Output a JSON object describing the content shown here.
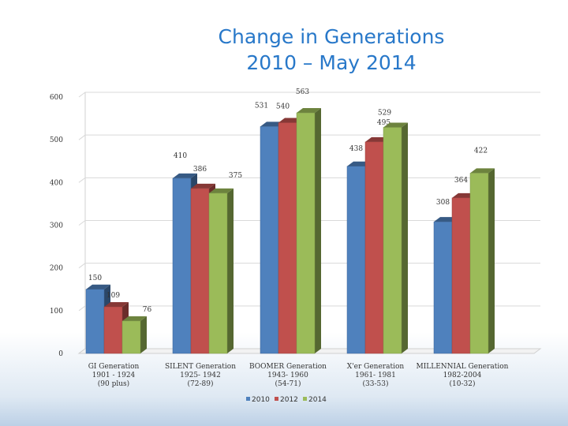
{
  "title_line1": "Change in Generations",
  "title_line2": "2010 – May 2014",
  "colors": {
    "2010": "#4f81bd",
    "2012": "#c0504d",
    "2014": "#9bbb59"
  },
  "chart_data": {
    "type": "bar",
    "title": "Change in Generations 2010 – May 2014",
    "ylim": [
      0,
      600
    ],
    "yticks": [
      0,
      100,
      200,
      300,
      400,
      500,
      600
    ],
    "grid": true,
    "legend_position": "bottom",
    "categories": [
      [
        "GI Generation",
        "1901 - 1924",
        "(90 plus)"
      ],
      [
        "SILENT Generation",
        "1925- 1942",
        "(72-89)"
      ],
      [
        "BOOMER Generation",
        "1943- 1960",
        "(54-71)"
      ],
      [
        "X'er Generation",
        "1961- 1981",
        "(33-53)"
      ],
      [
        "MILLENNIAL Generation",
        "1982-2004",
        "(10-32)"
      ]
    ],
    "series": [
      {
        "name": "2010",
        "values": [
          150,
          410,
          531,
          438,
          308
        ]
      },
      {
        "name": "2012",
        "values": [
          109,
          386,
          540,
          495,
          364
        ]
      },
      {
        "name": "2014",
        "values": [
          76,
          375,
          563,
          529,
          422
        ]
      }
    ]
  }
}
